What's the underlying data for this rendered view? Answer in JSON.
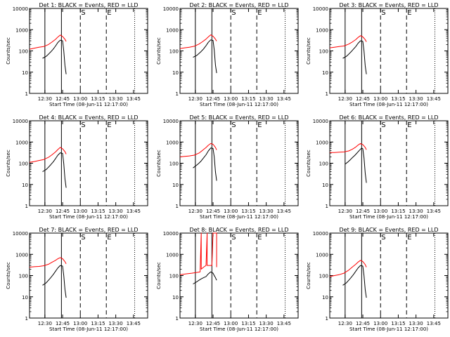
{
  "colors": {
    "events": "#000000",
    "lld": "#ff0000",
    "axis": "#000000"
  },
  "chart_data": [
    {
      "type": "line",
      "title": "Det 1: BLACK = Events, RED = LLD",
      "xlabel": "Start Time (08-Jun-11 12:17:00)",
      "ylabel": "Counts/sec",
      "yscale": "log",
      "ylim": [
        1,
        10000
      ],
      "xlim": [
        "12:17",
        "13:57"
      ],
      "xticks": [
        "12:30",
        "12:45",
        "13:00",
        "13:15",
        "13:30",
        "13:45"
      ],
      "yticks": [
        "1",
        "10",
        "100",
        "1000",
        "10000"
      ],
      "markers": {
        "solid": [
          "12:30",
          "12:44"
        ],
        "dashed": [
          "13:00",
          "13:22"
        ],
        "dotted": [
          "13:46"
        ]
      },
      "marker_labels": {
        "S": "13:00",
        "E": "13:22"
      },
      "series": [
        {
          "color": "red",
          "x": [
            "12:17",
            "12:21",
            "12:25",
            "12:29",
            "12:33",
            "12:36",
            "12:39",
            "12:41",
            "12:43",
            "12:45",
            "12:47",
            "12:48"
          ],
          "y": [
            120,
            135,
            150,
            160,
            200,
            260,
            350,
            450,
            560,
            480,
            350,
            280
          ]
        },
        {
          "color": "black",
          "x": [
            "12:28",
            "12:31",
            "12:33",
            "12:35",
            "12:37",
            "12:39",
            "12:41",
            "12:43",
            "12:45",
            "12:46",
            "12:47",
            "12:48"
          ],
          "y": [
            45,
            55,
            70,
            90,
            120,
            170,
            250,
            320,
            300,
            100,
            20,
            8
          ]
        }
      ]
    },
    {
      "type": "line",
      "title": "Det 2: BLACK = Events, RED = LLD",
      "xlabel": "Start Time (08-Jun-11 12:17:00)",
      "ylabel": "Counts/sec",
      "yscale": "log",
      "ylim": [
        1,
        10000
      ],
      "xlim": [
        "12:17",
        "13:57"
      ],
      "xticks": [
        "12:30",
        "12:45",
        "13:00",
        "13:15",
        "13:30",
        "13:45"
      ],
      "yticks": [
        "1",
        "10",
        "100",
        "1000",
        "10000"
      ],
      "markers": {
        "solid": [
          "12:30",
          "12:44"
        ],
        "dashed": [
          "13:00",
          "13:22"
        ],
        "dotted": [
          "13:46"
        ]
      },
      "marker_labels": {
        "S": "13:00",
        "E": "13:22"
      },
      "series": [
        {
          "color": "red",
          "x": [
            "12:17",
            "12:21",
            "12:25",
            "12:29",
            "12:33",
            "12:36",
            "12:39",
            "12:41",
            "12:43",
            "12:45",
            "12:47",
            "12:48"
          ],
          "y": [
            130,
            140,
            150,
            165,
            210,
            270,
            360,
            460,
            570,
            490,
            360,
            290
          ]
        },
        {
          "color": "black",
          "x": [
            "12:28",
            "12:31",
            "12:33",
            "12:35",
            "12:37",
            "12:39",
            "12:41",
            "12:43",
            "12:45",
            "12:46",
            "12:47",
            "12:48"
          ],
          "y": [
            50,
            60,
            75,
            95,
            125,
            175,
            255,
            330,
            310,
            110,
            22,
            9
          ]
        }
      ]
    },
    {
      "type": "line",
      "title": "Det 3: BLACK = Events, RED = LLD",
      "xlabel": "Start Time (08-Jun-11 12:17:00)",
      "ylabel": "Counts/sec",
      "yscale": "log",
      "ylim": [
        1,
        10000
      ],
      "xlim": [
        "12:17",
        "13:57"
      ],
      "xticks": [
        "12:30",
        "12:45",
        "13:00",
        "13:15",
        "13:30",
        "13:45"
      ],
      "yticks": [
        "1",
        "10",
        "100",
        "1000",
        "10000"
      ],
      "markers": {
        "solid": [
          "12:30",
          "12:44"
        ],
        "dashed": [
          "13:00",
          "13:22"
        ],
        "dotted": [
          "13:46"
        ]
      },
      "marker_labels": {
        "S": "13:00",
        "E": "13:22"
      },
      "series": [
        {
          "color": "red",
          "x": [
            "12:17",
            "12:21",
            "12:25",
            "12:29",
            "12:33",
            "12:36",
            "12:39",
            "12:41",
            "12:43",
            "12:45",
            "12:47",
            "12:48"
          ],
          "y": [
            140,
            150,
            160,
            170,
            210,
            260,
            340,
            430,
            520,
            460,
            340,
            270
          ]
        },
        {
          "color": "black",
          "x": [
            "12:28",
            "12:31",
            "12:33",
            "12:35",
            "12:37",
            "12:39",
            "12:41",
            "12:43",
            "12:45",
            "12:46",
            "12:47",
            "12:48"
          ],
          "y": [
            45,
            55,
            70,
            90,
            120,
            160,
            230,
            300,
            280,
            100,
            20,
            8
          ]
        }
      ]
    },
    {
      "type": "line",
      "title": "Det 4: BLACK = Events, RED = LLD",
      "xlabel": "Start Time (08-Jun-11 12:17:00)",
      "ylabel": "Counts/sec",
      "yscale": "log",
      "ylim": [
        1,
        10000
      ],
      "xlim": [
        "12:17",
        "13:57"
      ],
      "xticks": [
        "12:30",
        "12:45",
        "13:00",
        "13:15",
        "13:30",
        "13:45"
      ],
      "yticks": [
        "1",
        "10",
        "100",
        "1000",
        "10000"
      ],
      "markers": {
        "solid": [
          "12:30",
          "12:44"
        ],
        "dashed": [
          "13:00",
          "13:22"
        ],
        "dotted": [
          "13:46"
        ]
      },
      "marker_labels": {
        "S": "13:00",
        "E": "13:22"
      },
      "series": [
        {
          "color": "red",
          "x": [
            "12:17",
            "12:21",
            "12:25",
            "12:29",
            "12:33",
            "12:36",
            "12:39",
            "12:41",
            "12:43",
            "12:45",
            "12:47",
            "12:48"
          ],
          "y": [
            110,
            120,
            135,
            150,
            190,
            250,
            340,
            440,
            560,
            480,
            350,
            270
          ]
        },
        {
          "color": "black",
          "x": [
            "12:28",
            "12:31",
            "12:33",
            "12:35",
            "12:37",
            "12:39",
            "12:41",
            "12:43",
            "12:45",
            "12:46",
            "12:47",
            "12:48"
          ],
          "y": [
            40,
            50,
            65,
            85,
            115,
            165,
            240,
            310,
            290,
            95,
            18,
            7
          ]
        }
      ]
    },
    {
      "type": "line",
      "title": "Det 5: BLACK = Events, RED = LLD",
      "xlabel": "Start Time (08-Jun-11 12:17:00)",
      "ylabel": "Counts/sec",
      "yscale": "log",
      "ylim": [
        1,
        10000
      ],
      "xlim": [
        "12:17",
        "13:57"
      ],
      "xticks": [
        "12:30",
        "12:45",
        "13:00",
        "13:15",
        "13:30",
        "13:45"
      ],
      "yticks": [
        "1",
        "10",
        "100",
        "1000",
        "10000"
      ],
      "markers": {
        "solid": [
          "12:30",
          "12:44"
        ],
        "dashed": [
          "13:00",
          "13:22"
        ],
        "dotted": [
          "13:46"
        ]
      },
      "marker_labels": {
        "S": "13:00",
        "E": "13:22"
      },
      "series": [
        {
          "color": "red",
          "x": [
            "12:17",
            "12:21",
            "12:25",
            "12:29",
            "12:33",
            "12:36",
            "12:39",
            "12:41",
            "12:43",
            "12:45",
            "12:47",
            "12:48"
          ],
          "y": [
            200,
            210,
            220,
            240,
            300,
            400,
            550,
            700,
            850,
            780,
            560,
            420
          ]
        },
        {
          "color": "black",
          "x": [
            "12:28",
            "12:31",
            "12:33",
            "12:35",
            "12:37",
            "12:39",
            "12:41",
            "12:43",
            "12:45",
            "12:46",
            "12:47",
            "12:48"
          ],
          "y": [
            60,
            80,
            100,
            130,
            180,
            250,
            380,
            520,
            500,
            200,
            40,
            15
          ]
        }
      ]
    },
    {
      "type": "line",
      "title": "Det 6: BLACK = Events, RED = LLD",
      "xlabel": "Start Time (08-Jun-11 12:17:00)",
      "ylabel": "Counts/sec",
      "yscale": "log",
      "ylim": [
        1,
        10000
      ],
      "xlim": [
        "12:17",
        "13:57"
      ],
      "xticks": [
        "12:30",
        "12:45",
        "13:00",
        "13:15",
        "13:30",
        "13:45"
      ],
      "yticks": [
        "1",
        "10",
        "100",
        "1000",
        "10000"
      ],
      "markers": {
        "solid": [
          "12:30",
          "12:44"
        ],
        "dashed": [
          "13:00",
          "13:22"
        ],
        "dotted": [
          "13:46"
        ]
      },
      "marker_labels": {
        "S": "13:00",
        "E": "13:22"
      },
      "series": [
        {
          "color": "red",
          "x": [
            "12:17",
            "12:21",
            "12:25",
            "12:29",
            "12:33",
            "12:36",
            "12:39",
            "12:41",
            "12:43",
            "12:45",
            "12:47",
            "12:48"
          ],
          "y": [
            320,
            320,
            330,
            340,
            380,
            450,
            580,
            720,
            850,
            760,
            560,
            430
          ]
        },
        {
          "color": "black",
          "x": [
            "12:30",
            "12:32",
            "12:34",
            "12:36",
            "12:38",
            "12:40",
            "12:42",
            "12:44",
            "12:45",
            "12:46",
            "12:47",
            "12:48"
          ],
          "y": [
            90,
            110,
            140,
            180,
            230,
            300,
            400,
            520,
            480,
            180,
            35,
            12
          ]
        }
      ]
    },
    {
      "type": "line",
      "title": "Det 7: BLACK = Events, RED = LLD",
      "xlabel": "Start Time (08-Jun-11 12:17:00)",
      "ylabel": "Counts/sec",
      "yscale": "log",
      "ylim": [
        1,
        10000
      ],
      "xlim": [
        "12:17",
        "13:57"
      ],
      "xticks": [
        "12:30",
        "12:45",
        "13:00",
        "13:15",
        "13:30",
        "13:45"
      ],
      "yticks": [
        "1",
        "10",
        "100",
        "1000",
        "10000"
      ],
      "markers": {
        "solid": [
          "12:30",
          "12:44"
        ],
        "dashed": [
          "13:00",
          "13:22"
        ],
        "dotted": [
          "13:46"
        ]
      },
      "marker_labels": {
        "S": "13:00",
        "E": "13:22"
      },
      "series": [
        {
          "color": "red",
          "x": [
            "12:17",
            "12:21",
            "12:25",
            "12:29",
            "12:33",
            "12:36",
            "12:39",
            "12:41",
            "12:43",
            "12:45",
            "12:47",
            "12:48"
          ],
          "y": [
            250,
            260,
            270,
            290,
            340,
            420,
            520,
            620,
            700,
            620,
            450,
            360
          ]
        },
        {
          "color": "black",
          "x": [
            "12:28",
            "12:31",
            "12:33",
            "12:35",
            "12:37",
            "12:39",
            "12:41",
            "12:43",
            "12:45",
            "12:46",
            "12:47",
            "12:48"
          ],
          "y": [
            35,
            45,
            60,
            80,
            110,
            160,
            230,
            300,
            280,
            100,
            22,
            9
          ]
        }
      ]
    },
    {
      "type": "line",
      "title": "Det 8: BLACK = Events, RED = LLD",
      "xlabel": "Start Time (08-Jun-11 12:17:00)",
      "ylabel": "Counts/sec",
      "yscale": "log",
      "ylim": [
        1,
        10000
      ],
      "xlim": [
        "12:17",
        "13:57"
      ],
      "xticks": [
        "12:30",
        "12:45",
        "13:00",
        "13:15",
        "13:30",
        "13:45"
      ],
      "yticks": [
        "1",
        "10",
        "100",
        "1000",
        "10000"
      ],
      "markers": {
        "solid": [
          "12:30",
          "12:44"
        ],
        "dashed": [
          "13:00",
          "13:22"
        ],
        "dotted": [
          "13:46"
        ]
      },
      "marker_labels": {
        "S": "13:00",
        "E": "13:22"
      },
      "series": [
        {
          "color": "red",
          "x": [
            "12:17",
            "12:22",
            "12:27",
            "12:31",
            "12:34",
            "12:35",
            "12:35",
            "12:37",
            "12:39",
            "12:40",
            "12:40",
            "12:44",
            "12:45",
            "12:46",
            "12:48",
            "12:48"
          ],
          "y": [
            110,
            120,
            130,
            140,
            150,
            10000,
            200,
            250,
            300,
            10000,
            300,
            300,
            10000,
            10000,
            10000,
            250
          ]
        },
        {
          "color": "black",
          "x": [
            "12:28",
            "12:31",
            "12:33",
            "12:35",
            "12:37",
            "12:39",
            "12:41",
            "12:43",
            "12:45",
            "12:46",
            "12:47",
            "12:48"
          ],
          "y": [
            40,
            50,
            60,
            70,
            80,
            90,
            120,
            150,
            130,
            100,
            80,
            60
          ]
        }
      ]
    },
    {
      "type": "line",
      "title": "Det 9: BLACK = Events, RED = LLD",
      "xlabel": "Start Time (08-Jun-11 12:17:00)",
      "ylabel": "Counts/sec",
      "yscale": "log",
      "ylim": [
        1,
        10000
      ],
      "xlim": [
        "12:17",
        "13:57"
      ],
      "xticks": [
        "12:30",
        "12:45",
        "13:00",
        "13:15",
        "13:30",
        "13:45"
      ],
      "yticks": [
        "1",
        "10",
        "100",
        "1000",
        "10000"
      ],
      "markers": {
        "solid": [
          "12:30",
          "12:44"
        ],
        "dashed": [
          "13:00",
          "13:22"
        ],
        "dotted": [
          "13:46"
        ]
      },
      "marker_labels": {
        "S": "13:00",
        "E": "13:22"
      },
      "series": [
        {
          "color": "red",
          "x": [
            "12:17",
            "12:21",
            "12:25",
            "12:29",
            "12:33",
            "12:36",
            "12:39",
            "12:41",
            "12:43",
            "12:45",
            "12:47",
            "12:48"
          ],
          "y": [
            90,
            100,
            110,
            130,
            180,
            250,
            340,
            430,
            520,
            460,
            330,
            250
          ]
        },
        {
          "color": "black",
          "x": [
            "12:28",
            "12:31",
            "12:33",
            "12:35",
            "12:37",
            "12:39",
            "12:41",
            "12:43",
            "12:45",
            "12:46",
            "12:47",
            "12:48"
          ],
          "y": [
            35,
            45,
            60,
            80,
            110,
            160,
            230,
            300,
            280,
            100,
            22,
            9
          ]
        }
      ]
    }
  ]
}
